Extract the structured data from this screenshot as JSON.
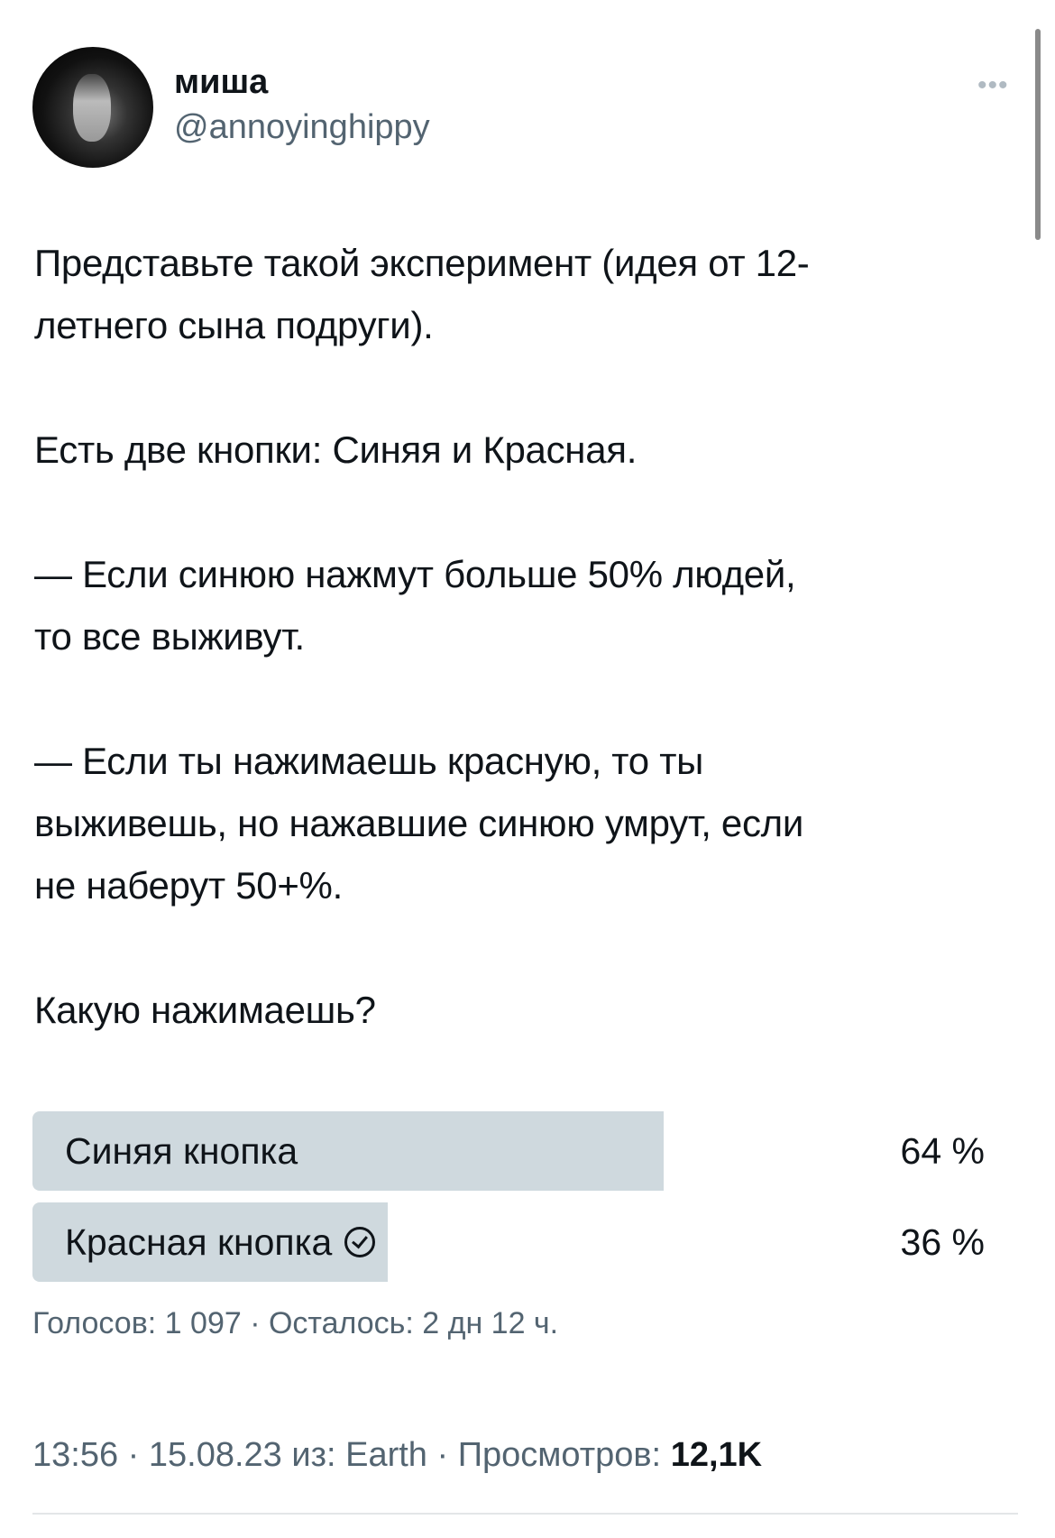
{
  "author": {
    "name": "миша",
    "handle": "@annoyinghippy"
  },
  "more_icon": "ellipsis-icon",
  "tweet_text": "Представьте такой эксперимент (идея от 12-\nлетнего сына подруги).\n\nЕсть две кнопки: Синяя и Красная.\n\n— Если синюю нажмут больше 50% людей,\nто все выживут.\n\n— Если ты нажимаешь красную, то ты\nвыживешь, но нажавшие синюю умрут, если\nне наберут 50+%.\n\nКакую нажимаешь?",
  "poll": {
    "options": [
      {
        "label": "Синяя кнопка",
        "percent_label": "64 %",
        "percent": 64,
        "selected": false
      },
      {
        "label": "Красная кнопка",
        "percent_label": "36 %",
        "percent": 36,
        "selected": true
      }
    ],
    "bar_color": "#cfd9de",
    "meta": "Голосов: 1 097 · Осталось: 2 дн 12 ч."
  },
  "footer": {
    "time_date_source": "13:56 · 15.08.23 из: Earth · Просмотров: ",
    "views": "12,1K"
  }
}
